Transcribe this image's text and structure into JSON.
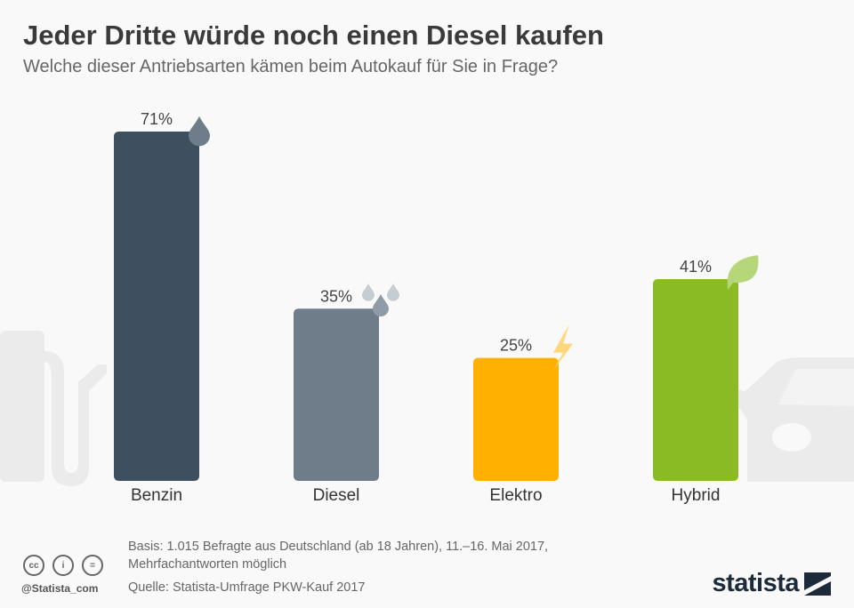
{
  "title": "Jeder Dritte würde noch einen Diesel kaufen",
  "subtitle": "Welche dieser Antriebsarten kämen beim Autokauf für Sie in Frage?",
  "chart_data": {
    "type": "bar",
    "title": "Jeder Dritte würde noch einen Diesel kaufen",
    "subtitle": "Welche dieser Antriebsarten kämen beim Autokauf für Sie in Frage?",
    "categories": [
      "Benzin",
      "Diesel",
      "Elektro",
      "Hybrid"
    ],
    "values": [
      71,
      35,
      25,
      41
    ],
    "labels": [
      "71%",
      "35%",
      "25%",
      "41%"
    ],
    "colors": [
      "#3e5060",
      "#6f7d8a",
      "#ffb000",
      "#8bbb24"
    ],
    "icons": [
      "drop-icon",
      "drops-icon",
      "lightning-icon",
      "leaf-icon"
    ],
    "unit": "%",
    "ylim": [
      0,
      71
    ],
    "grid": false
  },
  "footer": {
    "basis": "Basis: 1.015 Befragte aus Deutschland (ab 18 Jahren), 11.–16. Mai 2017,",
    "basis2": "Mehrfachantworten möglich",
    "source": "Quelle: Statista-Umfrage PKW-Kauf 2017",
    "handle": "@Statista_com",
    "logo": "statista"
  }
}
